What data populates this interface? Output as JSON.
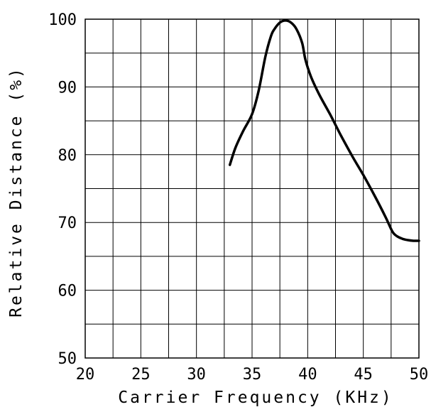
{
  "chart_data": {
    "type": "line",
    "title": "",
    "xlabel": "Carrier Frequency (KHz)",
    "ylabel": "Relative Distance (%)",
    "xlim": [
      20,
      50
    ],
    "ylim": [
      50,
      100
    ],
    "x_ticks": [
      20,
      25,
      30,
      35,
      40,
      45,
      50
    ],
    "x_tick_labels": [
      "20",
      "25",
      "30",
      "35",
      "40",
      "45",
      "50"
    ],
    "y_ticks": [
      50,
      60,
      70,
      80,
      90,
      100
    ],
    "y_tick_labels": [
      "50",
      "60",
      "70",
      "80",
      "90",
      "100"
    ],
    "grid": true,
    "x_grid_step": 2.5,
    "y_grid_step": 5,
    "series": [
      {
        "x": [
          33.0,
          33.5,
          34.2,
          35.0,
          35.6,
          36.2,
          36.7,
          37.0,
          37.5,
          38.0,
          38.5,
          39.0,
          39.5,
          39.8,
          40.3,
          41.0,
          42.0,
          43.0,
          44.0,
          45.0,
          46.0,
          47.0,
          47.6,
          48.0,
          48.5,
          49.0,
          49.5,
          50.0
        ],
        "y": [
          78.5,
          81.0,
          83.5,
          86.0,
          89.5,
          94.5,
          97.5,
          98.5,
          99.5,
          99.8,
          99.5,
          98.5,
          96.5,
          94.0,
          91.5,
          89.0,
          86.0,
          82.8,
          79.8,
          77.0,
          74.0,
          70.8,
          68.7,
          68.0,
          67.6,
          67.4,
          67.3,
          67.3
        ]
      }
    ]
  }
}
